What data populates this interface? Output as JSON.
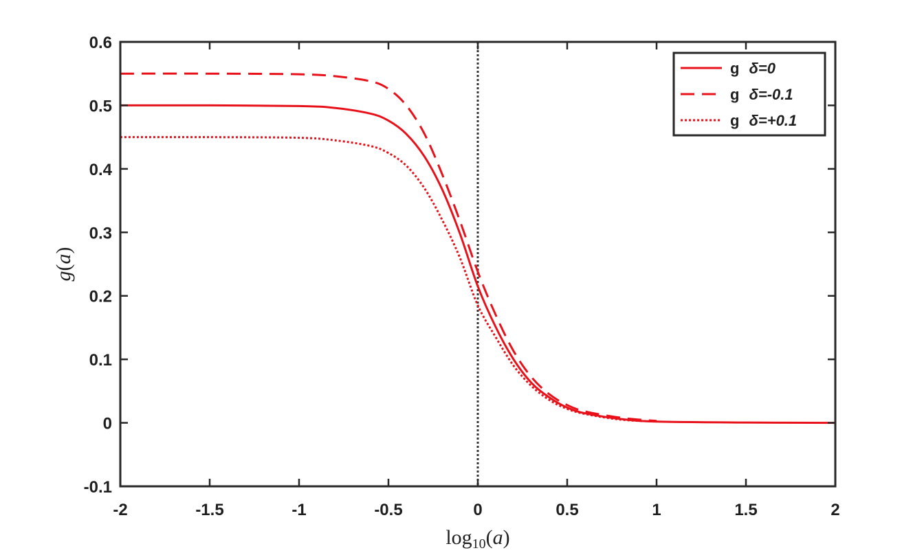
{
  "chart_data": {
    "type": "line",
    "title": "",
    "xlabel": "log10(a)",
    "ylabel": "g(a)",
    "xlim": [
      -2,
      2
    ],
    "ylim": [
      -0.1,
      0.6
    ],
    "x_ticks": [
      -2,
      -1.5,
      -1,
      -0.5,
      0,
      0.5,
      1,
      1.5,
      2
    ],
    "x_tick_labels": [
      "-2",
      "-1.5",
      "-1",
      "-0.5",
      "0",
      "0.5",
      "1",
      "1.5",
      "2"
    ],
    "y_ticks": [
      -0.1,
      0,
      0.1,
      0.2,
      0.3,
      0.4,
      0.5,
      0.6
    ],
    "y_tick_labels": [
      "-0.1",
      "0",
      "0.1",
      "0.2",
      "0.3",
      "0.4",
      "0.5",
      "0.6"
    ],
    "grid": false,
    "legend_position": "top-right",
    "reference_lines": [
      {
        "orientation": "vertical",
        "x": 0,
        "style": "dotted",
        "color": "#333333"
      }
    ],
    "series": [
      {
        "name": "g  δ=0",
        "legend_g": "g",
        "legend_delta": "δ=0",
        "style": "solid",
        "color": "#e8111a",
        "x": [
          -2,
          -1.5,
          -1,
          -0.8,
          -0.6,
          -0.5,
          -0.4,
          -0.3,
          -0.2,
          -0.1,
          0,
          0.1,
          0.2,
          0.3,
          0.4,
          0.5,
          0.6,
          0.8,
          1,
          1.5,
          2
        ],
        "y": [
          0.5,
          0.5,
          0.499,
          0.496,
          0.487,
          0.476,
          0.455,
          0.42,
          0.368,
          0.298,
          0.215,
          0.151,
          0.1,
          0.063,
          0.04,
          0.024,
          0.015,
          0.006,
          0.002,
          0.0005,
          0.0
        ]
      },
      {
        "name": "g  δ=-0.1",
        "legend_g": "g",
        "legend_delta": "δ=-0.1",
        "style": "dashed",
        "color": "#e8111a",
        "x": [
          -2,
          -1.5,
          -1,
          -0.8,
          -0.6,
          -0.5,
          -0.4,
          -0.3,
          -0.2,
          -0.1,
          0,
          0.1,
          0.2,
          0.3,
          0.4,
          0.5,
          0.6,
          0.8,
          1
        ],
        "y": [
          0.55,
          0.55,
          0.549,
          0.546,
          0.538,
          0.526,
          0.5,
          0.456,
          0.392,
          0.318,
          0.238,
          0.17,
          0.113,
          0.072,
          0.045,
          0.028,
          0.018,
          0.008,
          0.003
        ]
      },
      {
        "name": "g  δ=+0.1",
        "legend_g": "g",
        "legend_delta": "δ=+0.1",
        "style": "dotted",
        "color": "#e8111a",
        "x": [
          -2,
          -1.5,
          -1,
          -0.8,
          -0.6,
          -0.5,
          -0.4,
          -0.3,
          -0.2,
          -0.1,
          0,
          0.1,
          0.2,
          0.3,
          0.4,
          0.5,
          0.6,
          0.8,
          1
        ],
        "y": [
          0.45,
          0.45,
          0.449,
          0.445,
          0.436,
          0.425,
          0.405,
          0.37,
          0.32,
          0.26,
          0.185,
          0.135,
          0.09,
          0.058,
          0.036,
          0.022,
          0.014,
          0.005,
          0.002
        ]
      }
    ]
  }
}
